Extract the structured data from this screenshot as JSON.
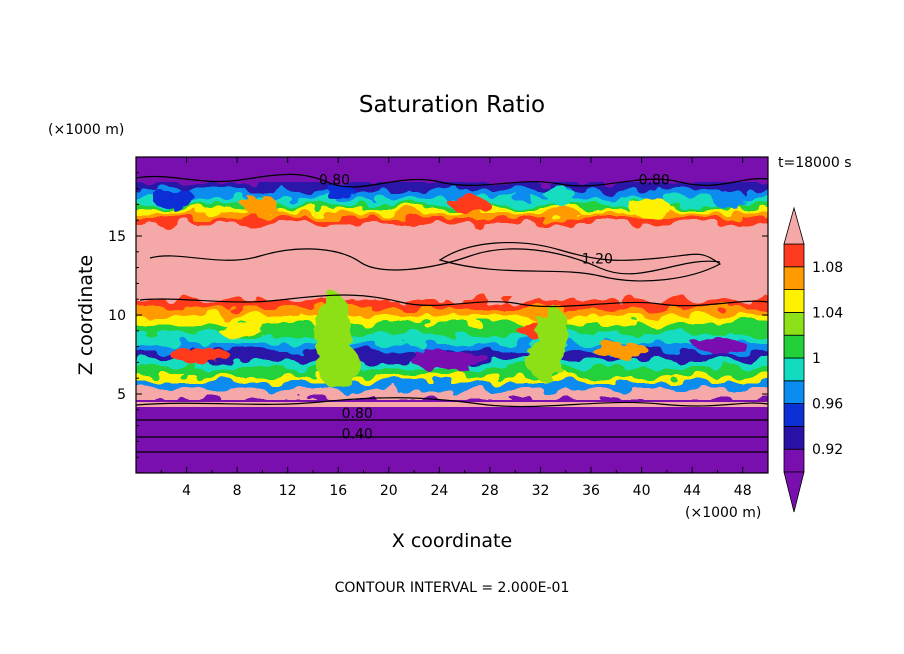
{
  "chart_data": {
    "type": "heatmap",
    "title": "Saturation Ratio",
    "xlabel": "X coordinate",
    "ylabel": "Z coordinate",
    "x_unit": "(×1000 m)",
    "y_unit": "(×1000 m)",
    "time_label": "t=18000 s",
    "footer": "CONTOUR INTERVAL = 2.000E-01",
    "xlim": [
      0,
      50
    ],
    "ylim": [
      0,
      20
    ],
    "x_ticks": [
      4,
      8,
      12,
      16,
      20,
      24,
      28,
      32,
      36,
      40,
      44,
      48
    ],
    "y_ticks": [
      5,
      10,
      15
    ],
    "colorbar": {
      "levels": [
        0.9,
        0.92,
        0.94,
        0.96,
        0.98,
        1.0,
        1.02,
        1.04,
        1.06,
        1.08,
        1.1
      ],
      "labels": [
        "0.92",
        "0.96",
        "1",
        "1.04",
        "1.08"
      ],
      "label_values": [
        0.92,
        0.96,
        1.0,
        1.04,
        1.08
      ],
      "colors": [
        "#7a0fb0",
        "#2a12a8",
        "#0d2fd6",
        "#0b8cf0",
        "#12dcc0",
        "#22d13a",
        "#8ee018",
        "#fff200",
        "#ff9a00",
        "#ff3b1f",
        "#f4a9a8"
      ],
      "under_color": "#7a0fb0",
      "over_color": "#f4a9a8"
    },
    "contour_labels": [
      {
        "text": "0.80",
        "x": 15.7,
        "z": 18.4
      },
      {
        "text": "0.80",
        "x": 41.0,
        "z": 18.4
      },
      {
        "text": "1.20",
        "x": 36.5,
        "z": 13.4
      },
      {
        "text": "0.80",
        "x": 17.5,
        "z": 3.6
      },
      {
        "text": "0.40",
        "x": 17.5,
        "z": 2.3
      }
    ]
  }
}
